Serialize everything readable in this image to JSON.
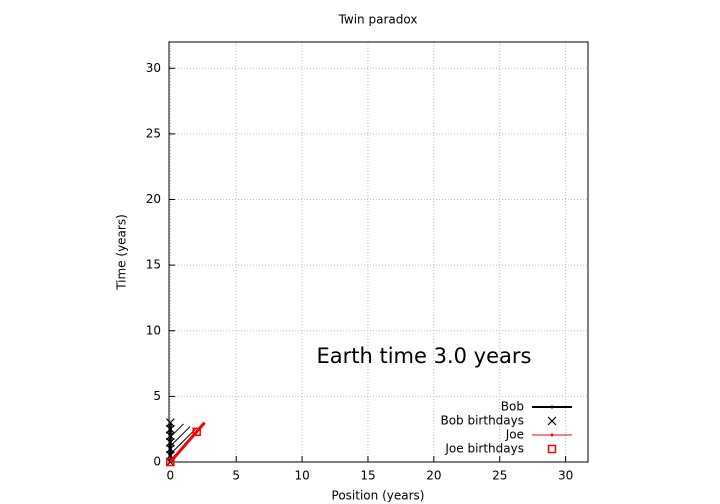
{
  "chart_data": {
    "type": "line",
    "title": "Twin paradox",
    "x_label": "Position (years)",
    "y_label": "Time (years)",
    "annotation": "Earth time  3.0 years",
    "xlim": [
      -0.1,
      31.7
    ],
    "ylim": [
      0,
      32
    ],
    "xticks": [
      0,
      5,
      10,
      15,
      20,
      25,
      30
    ],
    "yticks": [
      0,
      5,
      10,
      15,
      20,
      25,
      30
    ],
    "grid": true,
    "legend": "lower-right",
    "series": [
      {
        "name": "Bob",
        "color": "#000000",
        "marker": "line",
        "x": [
          0,
          0
        ],
        "values": [
          0,
          3
        ]
      },
      {
        "name": "Bob birthdays",
        "color": "#000000",
        "marker": "x",
        "x": [
          0,
          0,
          0,
          0,
          0,
          0,
          0
        ],
        "values": [
          0,
          0.5,
          1,
          1.5,
          2,
          2.5,
          3
        ]
      },
      {
        "name": "Joe",
        "color": "#ff0000",
        "marker": "line",
        "x": [
          0,
          2.6
        ],
        "values": [
          0,
          3.0
        ]
      },
      {
        "name": "Joe birthdays",
        "color": "#ff0000",
        "marker": "square",
        "x": [
          0,
          2.0
        ],
        "values": [
          0,
          2.3
        ]
      }
    ],
    "signals": [
      {
        "x": [
          0,
          1.9
        ],
        "values": [
          0.6,
          2.5
        ]
      },
      {
        "x": [
          0,
          1.5
        ],
        "values": [
          1.2,
          2.7
        ]
      },
      {
        "x": [
          0,
          1.0
        ],
        "values": [
          1.9,
          2.9
        ]
      }
    ]
  }
}
